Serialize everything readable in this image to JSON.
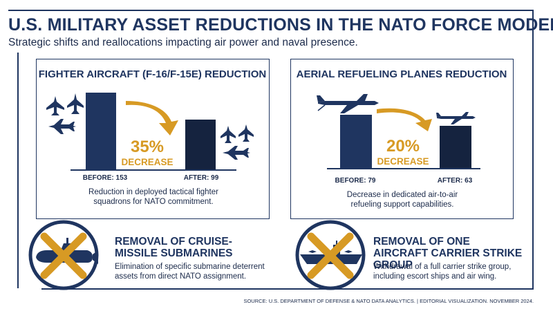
{
  "header": {
    "title": "U.S. MILITARY ASSET REDUCTIONS IN THE NATO FORCE MODEL",
    "subtitle": "Strategic shifts and reallocations impacting air power and naval presence."
  },
  "chart_data": [
    {
      "type": "bar",
      "title": "FIGHTER AIRCRAFT (F-16/F-15E) REDUCTION",
      "categories": [
        "BEFORE",
        "AFTER"
      ],
      "values": [
        153,
        99
      ],
      "value_labels": [
        "BEFORE: 153",
        "AFTER: 99"
      ],
      "change_percent": "35%",
      "change_label": "DECREASE",
      "caption": "Reduction in deployed tactical fighter squadrons for NATO commitment.",
      "colors": [
        "#1f3560",
        "#15233f"
      ]
    },
    {
      "type": "bar",
      "title": "AERIAL REFUELING PLANES REDUCTION",
      "categories": [
        "BEFORE",
        "AFTER"
      ],
      "values": [
        79,
        63
      ],
      "value_labels": [
        "BEFORE: 79",
        "AFTER: 63"
      ],
      "change_percent": "20%",
      "change_label": "DECREASE",
      "caption": "Decrease in dedicated air-to-air refueling support capabilities.",
      "colors": [
        "#1f3560",
        "#15233f"
      ]
    }
  ],
  "cards": [
    {
      "title": "REMOVAL OF CRUISE-MISSILE SUBMARINES",
      "body": "Elimination of specific submarine deterrent assets from direct NATO assignment.",
      "icon": "submarine-crossed-icon"
    },
    {
      "title": "REMOVAL OF ONE AIRCRAFT CARRIER STRIKE GROUP",
      "body": "Withdrawal of a full carrier strike group, including escort ships and air wing.",
      "icon": "carrier-crossed-icon"
    }
  ],
  "footer": {
    "source": "SOURCE: U.S. DEPARTMENT OF DEFENSE & NATO DATA ANALYTICS.  |  EDITORIAL VISUALIZATION. NOVEMBER 2024."
  },
  "colors": {
    "navy": "#1f3560",
    "dark_navy": "#15233f",
    "gold": "#d79a24"
  }
}
